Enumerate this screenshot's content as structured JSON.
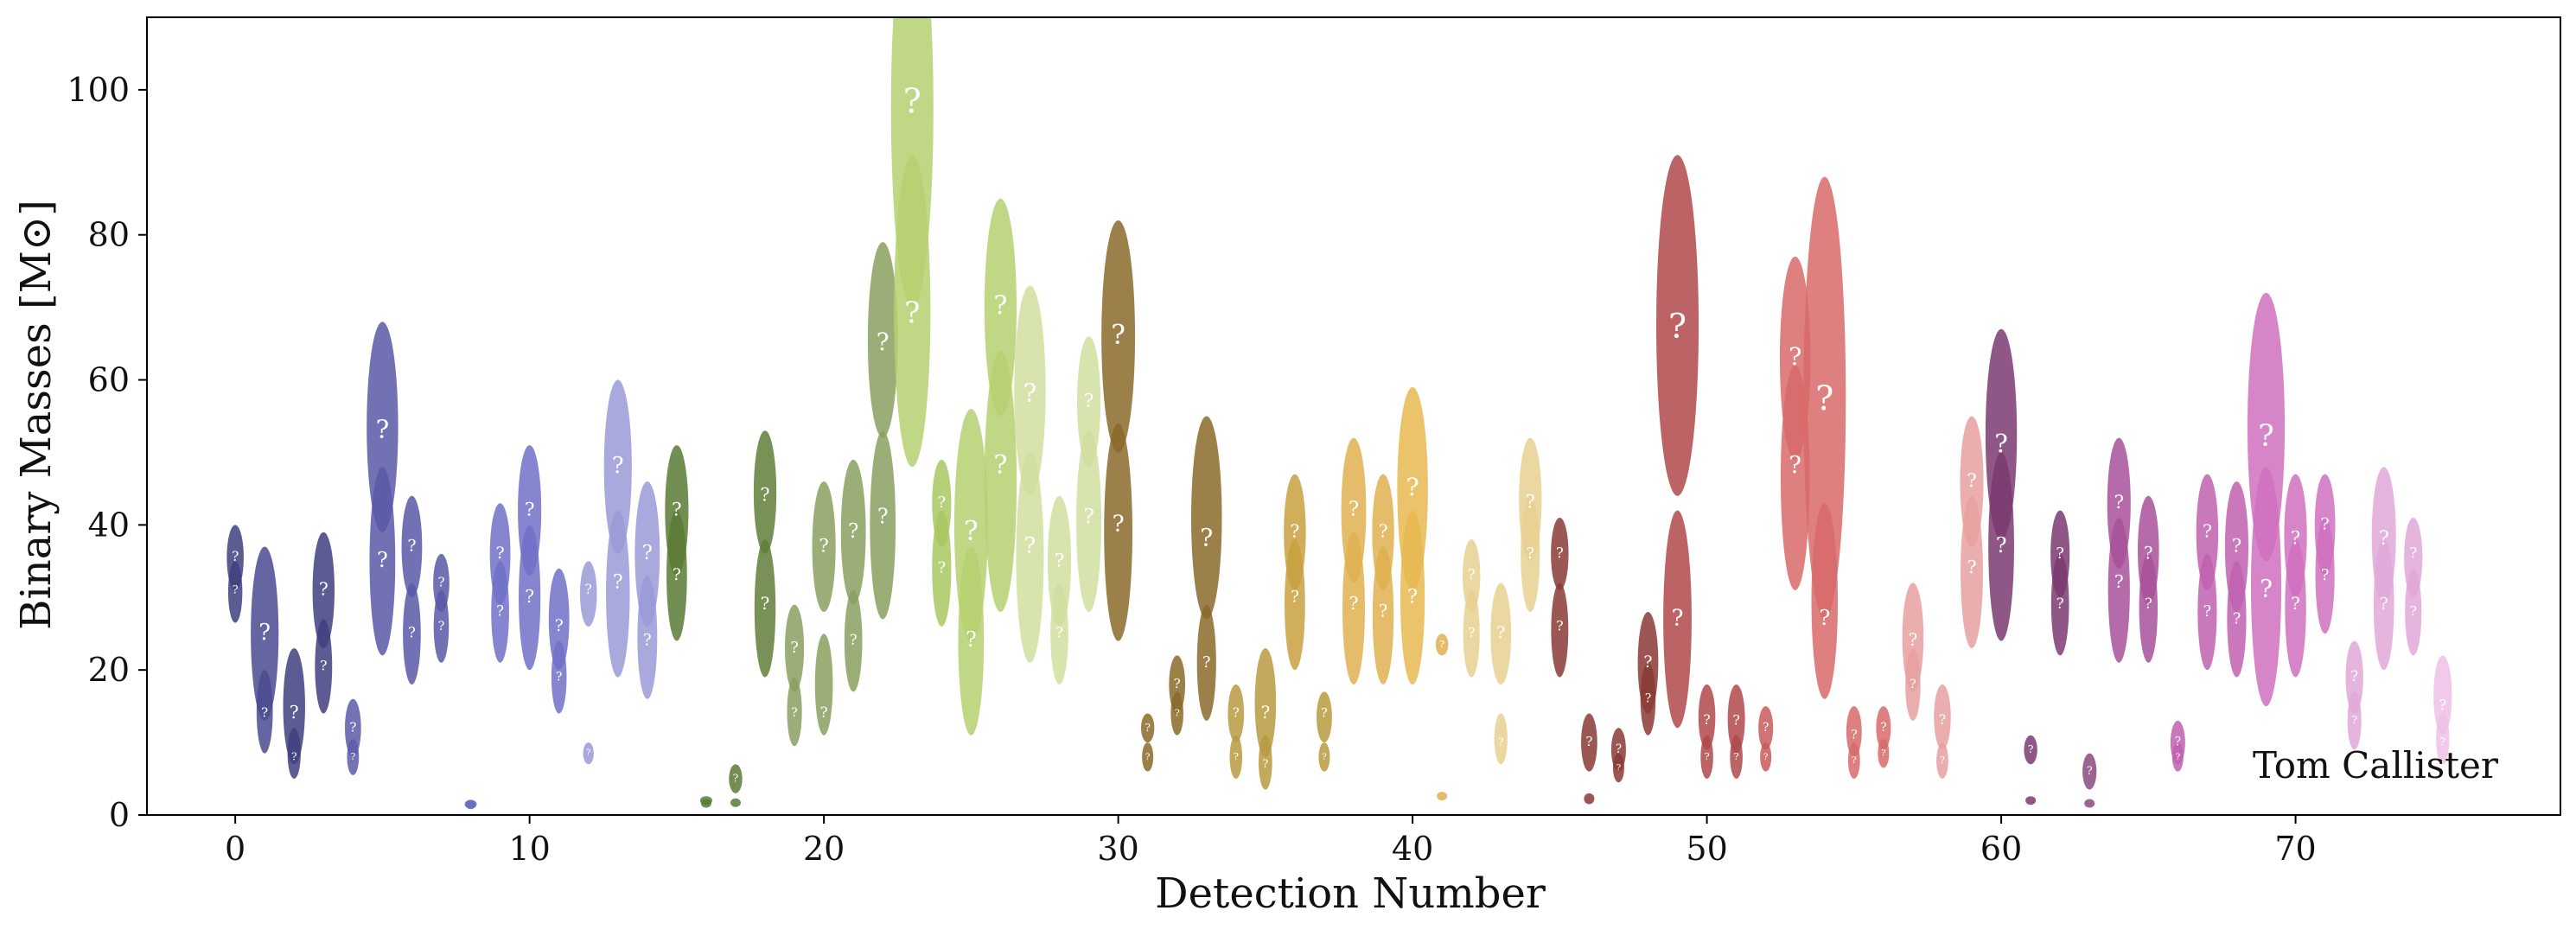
{
  "chart_data": {
    "type": "scatter",
    "xlabel": "Detection Number",
    "ylabel": "Binary Masses [M⊙]",
    "xlim": [
      -3,
      79
    ],
    "ylim": [
      0,
      110
    ],
    "xticks": [
      0,
      10,
      20,
      30,
      40,
      50,
      60,
      70
    ],
    "yticks": [
      0,
      20,
      40,
      60,
      80,
      100
    ],
    "credit": "Tom Callister",
    "marker_text": "?",
    "detections": [
      {
        "n": 0,
        "m1": 35.5,
        "m1_lo": 31,
        "m1_hi": 40,
        "m2": 31,
        "m2_lo": 26.5,
        "m2_hi": 35,
        "color": "#3f3f80"
      },
      {
        "n": 1,
        "m1": 25,
        "m1_lo": 13,
        "m1_hi": 37,
        "m2": 14,
        "m2_lo": 8.5,
        "m2_hi": 20,
        "color": "#4a4a90"
      },
      {
        "n": 2,
        "m1": 14,
        "m1_lo": 7,
        "m1_hi": 23,
        "m2": 8,
        "m2_lo": 5,
        "m2_hi": 12,
        "color": "#3f3f80"
      },
      {
        "n": 3,
        "m1": 31,
        "m1_lo": 23,
        "m1_hi": 39,
        "m2": 20.5,
        "m2_lo": 14,
        "m2_hi": 27,
        "color": "#3f3f80"
      },
      {
        "n": 4,
        "m1": 12,
        "m1_lo": 8,
        "m1_hi": 16,
        "m2": 8,
        "m2_lo": 5.5,
        "m2_hi": 10.5,
        "color": "#5c5ca8"
      },
      {
        "n": 5,
        "m1": 53,
        "m1_lo": 39,
        "m1_hi": 68,
        "m2": 35,
        "m2_lo": 22,
        "m2_hi": 48,
        "color": "#5858a6"
      },
      {
        "n": 6,
        "m1": 37,
        "m1_lo": 30,
        "m1_hi": 44,
        "m2": 25,
        "m2_lo": 18,
        "m2_hi": 32,
        "color": "#5858a6"
      },
      {
        "n": 7,
        "m1": 32,
        "m1_lo": 28,
        "m1_hi": 36,
        "m2": 26,
        "m2_lo": 21,
        "m2_hi": 31,
        "color": "#5858a6"
      },
      {
        "n": 8,
        "m1": 1.5,
        "m1_lo": 1.2,
        "m1_hi": 1.8,
        "m2": 1.4,
        "m2_lo": 1.1,
        "m2_hi": 1.7,
        "color": "#6868c0"
      },
      {
        "n": 9,
        "m1": 36,
        "m1_lo": 29,
        "m1_hi": 43,
        "m2": 28,
        "m2_lo": 21,
        "m2_hi": 35,
        "color": "#7070c8"
      },
      {
        "n": 10,
        "m1": 42,
        "m1_lo": 33,
        "m1_hi": 51,
        "m2": 30,
        "m2_lo": 20,
        "m2_hi": 40,
        "color": "#7070c8"
      },
      {
        "n": 11,
        "m1": 26,
        "m1_lo": 20,
        "m1_hi": 34,
        "m2": 19,
        "m2_lo": 14,
        "m2_hi": 24,
        "color": "#7070c8"
      },
      {
        "n": 12,
        "m1": 31,
        "m1_lo": 26,
        "m1_hi": 35,
        "m2": 8.5,
        "m2_lo": 7,
        "m2_hi": 10,
        "color": "#9a9ad8"
      },
      {
        "n": 13,
        "m1": 48,
        "m1_lo": 36,
        "m1_hi": 60,
        "m2": 32,
        "m2_lo": 19,
        "m2_hi": 42,
        "color": "#9a9ad8"
      },
      {
        "n": 14,
        "m1": 36,
        "m1_lo": 26,
        "m1_hi": 46,
        "m2": 24,
        "m2_lo": 16,
        "m2_hi": 33,
        "color": "#9a9ad8"
      },
      {
        "n": 15,
        "m1": 42,
        "m1_lo": 33,
        "m1_hi": 51,
        "m2": 33,
        "m2_lo": 24,
        "m2_hi": 42,
        "color": "#5a7a35"
      },
      {
        "n": 16,
        "m1": 1.9,
        "m1_lo": 1.6,
        "m1_hi": 2.4,
        "m2": 1.6,
        "m2_lo": 1.2,
        "m2_hi": 2.0,
        "color": "#5a7a35"
      },
      {
        "n": 17,
        "m1": 5,
        "m1_lo": 3,
        "m1_hi": 7,
        "m2": 1.7,
        "m2_lo": 1.2,
        "m2_hi": 2.2,
        "color": "#5a7a35"
      },
      {
        "n": 18,
        "m1": 44,
        "m1_lo": 36,
        "m1_hi": 53,
        "m2": 29,
        "m2_lo": 19,
        "m2_hi": 38,
        "color": "#5f7e3a"
      },
      {
        "n": 19,
        "m1": 23,
        "m1_lo": 17,
        "m1_hi": 29,
        "m2": 14,
        "m2_lo": 9.5,
        "m2_hi": 19,
        "color": "#8aa060"
      },
      {
        "n": 20,
        "m1": 37,
        "m1_lo": 28,
        "m1_hi": 46,
        "m2": 14,
        "m2_lo": 11,
        "m2_hi": 25,
        "color": "#8aa060"
      },
      {
        "n": 21,
        "m1": 39,
        "m1_lo": 29,
        "m1_hi": 49,
        "m2": 24,
        "m2_lo": 17,
        "m2_hi": 31,
        "color": "#8aa060"
      },
      {
        "n": 22,
        "m1": 65,
        "m1_lo": 52,
        "m1_hi": 79,
        "m2": 41,
        "m2_lo": 27,
        "m2_hi": 53,
        "color": "#8aa060"
      },
      {
        "n": 23,
        "m1": 98,
        "m1_lo": 70,
        "m1_hi": 125,
        "m2": 69,
        "m2_lo": 48,
        "m2_hi": 91,
        "color": "#b5d070"
      },
      {
        "n": 24,
        "m1": 43,
        "m1_lo": 37,
        "m1_hi": 49,
        "m2": 34,
        "m2_lo": 26,
        "m2_hi": 42,
        "color": "#a8c860"
      },
      {
        "n": 25,
        "m1": 39,
        "m1_lo": 24,
        "m1_hi": 56,
        "m2": 24,
        "m2_lo": 11,
        "m2_hi": 37,
        "color": "#b5d070"
      },
      {
        "n": 26,
        "m1": 70,
        "m1_lo": 55,
        "m1_hi": 85,
        "m2": 48,
        "m2_lo": 28,
        "m2_hi": 64,
        "color": "#b5d070"
      },
      {
        "n": 27,
        "m1": 58,
        "m1_lo": 44,
        "m1_hi": 73,
        "m2": 37,
        "m2_lo": 21,
        "m2_hi": 50,
        "color": "#d0dfa0"
      },
      {
        "n": 28,
        "m1": 35,
        "m1_lo": 26,
        "m1_hi": 44,
        "m2": 25,
        "m2_lo": 18,
        "m2_hi": 32,
        "color": "#d0dfa0"
      },
      {
        "n": 29,
        "m1": 57,
        "m1_lo": 48,
        "m1_hi": 66,
        "m2": 41,
        "m2_lo": 28,
        "m2_hi": 53,
        "color": "#d0dfa0"
      },
      {
        "n": 30,
        "m1": 66,
        "m1_lo": 50,
        "m1_hi": 82,
        "m2": 40,
        "m2_lo": 24,
        "m2_hi": 54,
        "color": "#8a6a2a"
      },
      {
        "n": 31,
        "m1": 12,
        "m1_lo": 10,
        "m1_hi": 14,
        "m2": 8,
        "m2_lo": 6,
        "m2_hi": 10,
        "color": "#8a6a2a"
      },
      {
        "n": 32,
        "m1": 18,
        "m1_lo": 14,
        "m1_hi": 22,
        "m2": 14,
        "m2_lo": 11,
        "m2_hi": 17,
        "color": "#8a6a2a"
      },
      {
        "n": 33,
        "m1": 38,
        "m1_lo": 27,
        "m1_hi": 55,
        "m2": 21,
        "m2_lo": 13,
        "m2_hi": 29,
        "color": "#8a6a2a"
      },
      {
        "n": 34,
        "m1": 14,
        "m1_lo": 10,
        "m1_hi": 18,
        "m2": 8,
        "m2_lo": 5,
        "m2_hi": 11,
        "color": "#b89a40"
      },
      {
        "n": 35,
        "m1": 14,
        "m1_lo": 8,
        "m1_hi": 23,
        "m2": 7,
        "m2_lo": 3.5,
        "m2_hi": 11,
        "color": "#b89a40"
      },
      {
        "n": 36,
        "m1": 39,
        "m1_lo": 31,
        "m1_hi": 47,
        "m2": 30,
        "m2_lo": 20,
        "m2_hi": 38,
        "color": "#c8a040"
      },
      {
        "n": 37,
        "m1": 14,
        "m1_lo": 10,
        "m1_hi": 17,
        "m2": 8,
        "m2_lo": 6,
        "m2_hi": 10,
        "color": "#b89a40"
      },
      {
        "n": 38,
        "m1": 42,
        "m1_lo": 32,
        "m1_hi": 52,
        "m2": 29,
        "m2_lo": 18,
        "m2_hi": 39,
        "color": "#e0b050"
      },
      {
        "n": 39,
        "m1": 39,
        "m1_lo": 31,
        "m1_hi": 47,
        "m2": 28,
        "m2_lo": 18,
        "m2_hi": 37,
        "color": "#e0b050"
      },
      {
        "n": 40,
        "m1": 45,
        "m1_lo": 31,
        "m1_hi": 59,
        "m2": 30,
        "m2_lo": 18,
        "m2_hi": 42,
        "color": "#e8b850"
      },
      {
        "n": 41,
        "m1": 23.5,
        "m1_lo": 22,
        "m1_hi": 25,
        "m2": 2.6,
        "m2_lo": 2.2,
        "m2_hi": 3.0,
        "color": "#e0b050"
      },
      {
        "n": 42,
        "m1": 33,
        "m1_lo": 28,
        "m1_hi": 38,
        "m2": 25,
        "m2_lo": 19,
        "m2_hi": 31,
        "color": "#e8d090"
      },
      {
        "n": 43,
        "m1": 25,
        "m1_lo": 18,
        "m1_hi": 32,
        "m2": 10,
        "m2_lo": 7,
        "m2_hi": 14,
        "color": "#e8d090"
      },
      {
        "n": 44,
        "m1": 43,
        "m1_lo": 35,
        "m1_hi": 52,
        "m2": 36,
        "m2_lo": 28,
        "m2_hi": 44,
        "color": "#e8d090"
      },
      {
        "n": 45,
        "m1": 36,
        "m1_lo": 31,
        "m1_hi": 41,
        "m2": 26,
        "m2_lo": 19,
        "m2_hi": 32,
        "color": "#8a3a35"
      },
      {
        "n": 46,
        "m1": 10,
        "m1_lo": 6,
        "m1_hi": 14,
        "m2": 2.2,
        "m2_lo": 1.5,
        "m2_hi": 3.0,
        "color": "#8a3a35"
      },
      {
        "n": 47,
        "m1": 9,
        "m1_lo": 6,
        "m1_hi": 12,
        "m2": 6.5,
        "m2_lo": 4.5,
        "m2_hi": 8.5,
        "color": "#8a3a35"
      },
      {
        "n": 48,
        "m1": 21,
        "m1_lo": 14,
        "m1_hi": 28,
        "m2": 16,
        "m2_lo": 11,
        "m2_hi": 21,
        "color": "#8a3a35"
      },
      {
        "n": 49,
        "m1": 67,
        "m1_lo": 44,
        "m1_hi": 91,
        "m2": 27,
        "m2_lo": 12,
        "m2_hi": 42,
        "color": "#b0484a"
      },
      {
        "n": 50,
        "m1": 13,
        "m1_lo": 9,
        "m1_hi": 18,
        "m2": 8,
        "m2_lo": 5,
        "m2_hi": 11,
        "color": "#b0484a"
      },
      {
        "n": 51,
        "m1": 13,
        "m1_lo": 8.5,
        "m1_hi": 18,
        "m2": 8,
        "m2_lo": 5,
        "m2_hi": 11,
        "color": "#b0484a"
      },
      {
        "n": 52,
        "m1": 12,
        "m1_lo": 9,
        "m1_hi": 15,
        "m2": 8,
        "m2_lo": 6,
        "m2_hi": 10,
        "color": "#c85a5a"
      },
      {
        "n": 53,
        "m1": 63,
        "m1_lo": 49,
        "m1_hi": 77,
        "m2": 48,
        "m2_lo": 31,
        "m2_hi": 62,
        "color": "#d86a6a"
      },
      {
        "n": 54,
        "m1": 57,
        "m1_lo": 27,
        "m1_hi": 88,
        "m2": 27,
        "m2_lo": 16,
        "m2_hi": 43,
        "color": "#d86a6a"
      },
      {
        "n": 55,
        "m1": 11,
        "m1_lo": 8,
        "m1_hi": 15,
        "m2": 7.5,
        "m2_lo": 5,
        "m2_hi": 10,
        "color": "#d86a6a"
      },
      {
        "n": 56,
        "m1": 12,
        "m1_lo": 9,
        "m1_hi": 15,
        "m2": 8.5,
        "m2_lo": 6.5,
        "m2_hi": 10.5,
        "color": "#d86a6a"
      },
      {
        "n": 57,
        "m1": 24,
        "m1_lo": 17,
        "m1_hi": 32,
        "m2": 18,
        "m2_lo": 13,
        "m2_hi": 23,
        "color": "#e8a0a0"
      },
      {
        "n": 58,
        "m1": 13,
        "m1_lo": 9,
        "m1_hi": 18,
        "m2": 7.5,
        "m2_lo": 5,
        "m2_hi": 10,
        "color": "#e8a0a0"
      },
      {
        "n": 59,
        "m1": 46,
        "m1_lo": 37,
        "m1_hi": 55,
        "m2": 34,
        "m2_lo": 23,
        "m2_hi": 44,
        "color": "#e8a0a0"
      },
      {
        "n": 60,
        "m1": 51,
        "m1_lo": 38,
        "m1_hi": 67,
        "m2": 37,
        "m2_lo": 24,
        "m2_hi": 50,
        "color": "#7a3a70"
      },
      {
        "n": 61,
        "m1": 9,
        "m1_lo": 7,
        "m1_hi": 11,
        "m2": 2.0,
        "m2_lo": 1.5,
        "m2_hi": 2.5,
        "color": "#7a3a70"
      },
      {
        "n": 62,
        "m1": 36,
        "m1_lo": 30,
        "m1_hi": 42,
        "m2": 29,
        "m2_lo": 22,
        "m2_hi": 36,
        "color": "#7a3a70"
      },
      {
        "n": 63,
        "m1": 6,
        "m1_lo": 3.5,
        "m1_hi": 8.5,
        "m2": 1.6,
        "m2_lo": 1.0,
        "m2_hi": 2.2,
        "color": "#8a4a80"
      },
      {
        "n": 64,
        "m1": 43,
        "m1_lo": 34,
        "m1_hi": 52,
        "m2": 32,
        "m2_lo": 21,
        "m2_hi": 41,
        "color": "#a8509a"
      },
      {
        "n": 65,
        "m1": 36,
        "m1_lo": 29,
        "m1_hi": 44,
        "m2": 29,
        "m2_lo": 21,
        "m2_hi": 36,
        "color": "#a8509a"
      },
      {
        "n": 66,
        "m1": 10,
        "m1_lo": 7,
        "m1_hi": 13,
        "m2": 8,
        "m2_lo": 6,
        "m2_hi": 10,
        "color": "#c060b0"
      },
      {
        "n": 67,
        "m1": 39,
        "m1_lo": 31,
        "m1_hi": 47,
        "m2": 28,
        "m2_lo": 20,
        "m2_hi": 36,
        "color": "#c060b0"
      },
      {
        "n": 68,
        "m1": 37,
        "m1_lo": 28,
        "m1_hi": 46,
        "m2": 27,
        "m2_lo": 19,
        "m2_hi": 35,
        "color": "#c060b0"
      },
      {
        "n": 69,
        "m1": 52,
        "m1_lo": 35,
        "m1_hi": 72,
        "m2": 31,
        "m2_lo": 15,
        "m2_hi": 48,
        "color": "#d070c0"
      },
      {
        "n": 70,
        "m1": 38,
        "m1_lo": 30,
        "m1_hi": 47,
        "m2": 29,
        "m2_lo": 19,
        "m2_hi": 38,
        "color": "#d070c0"
      },
      {
        "n": 71,
        "m1": 40,
        "m1_lo": 33,
        "m1_hi": 47,
        "m2": 33,
        "m2_lo": 25,
        "m2_hi": 41,
        "color": "#d070c0"
      },
      {
        "n": 72,
        "m1": 19,
        "m1_lo": 14,
        "m1_hi": 24,
        "m2": 13,
        "m2_lo": 9,
        "m2_hi": 17,
        "color": "#e0a8d8"
      },
      {
        "n": 73,
        "m1": 38,
        "m1_lo": 29,
        "m1_hi": 48,
        "m2": 29,
        "m2_lo": 20,
        "m2_hi": 38,
        "color": "#e0a8d8"
      },
      {
        "n": 74,
        "m1": 36,
        "m1_lo": 30,
        "m1_hi": 41,
        "m2": 28,
        "m2_lo": 22,
        "m2_hi": 34,
        "color": "#e0a8d8"
      },
      {
        "n": 75,
        "m1": 15,
        "m1_lo": 11,
        "m1_hi": 22,
        "m2": 10,
        "m2_lo": 7,
        "m2_hi": 14,
        "color": "#f0c0e8"
      }
    ]
  }
}
